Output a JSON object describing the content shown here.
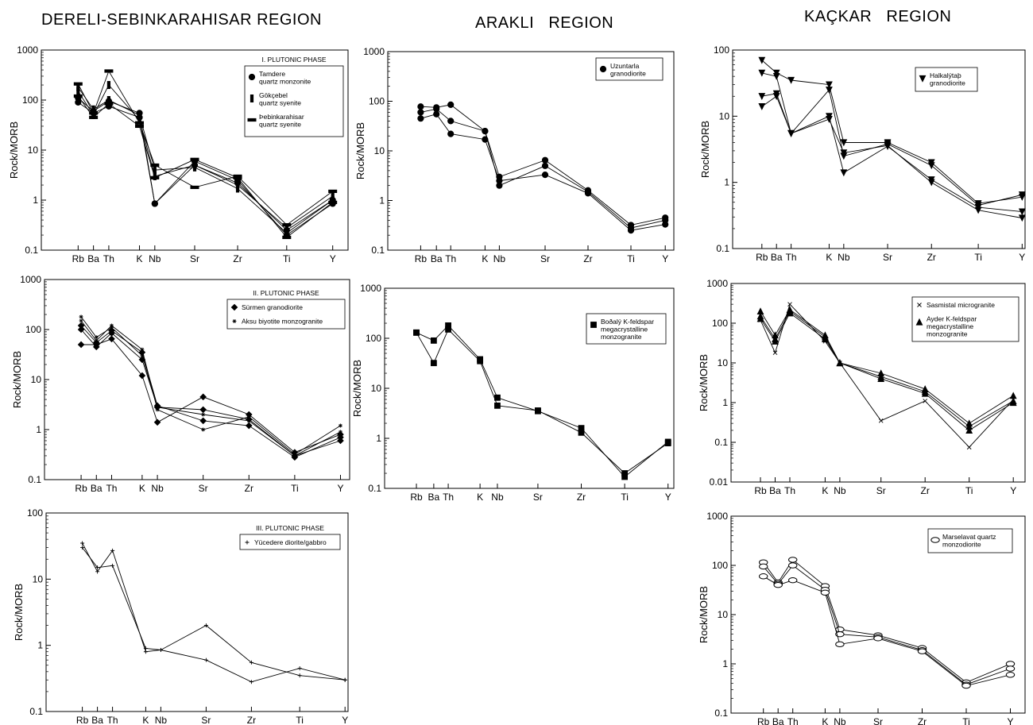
{
  "regions": {
    "left": "DERELI-SEBINKARAHISAR REGION",
    "middle": "ARAKLI   REGION",
    "right": "KAÇKAR   REGION"
  },
  "chart_data": [
    {
      "id": "p1",
      "type": "line",
      "yscale": "log",
      "ylim": [
        0.1,
        1000
      ],
      "yticks": [
        "0.1",
        "1",
        "10",
        "100",
        "1000"
      ],
      "ylabel": "Rock/MORB",
      "xlabel": "",
      "categories": [
        "Rb",
        "Ba",
        "Th",
        "K",
        "Nb",
        "Sr",
        "Zr",
        "Ti",
        "Y"
      ],
      "title": "",
      "legend": {
        "placement": "top-right",
        "heading": "I. PLUTONIC PHASE",
        "entries": [
          {
            "marker": "circle",
            "lines": [
              "Tamdere",
              "quartz monzonite"
            ]
          },
          {
            "marker": "vbar",
            "lines": [
              "Gökçebel",
              "quartz syenite"
            ]
          },
          {
            "marker": "hbar",
            "lines": [
              "Þebinkarahisar",
              "quartz syenite"
            ]
          }
        ]
      },
      "series": [
        {
          "marker": "circle",
          "values": [
            90,
            55,
            75,
            45,
            0.85,
            6,
            2.5,
            0.2,
            0.85
          ]
        },
        {
          "marker": "circle",
          "values": [
            110,
            60,
            95,
            55,
            0.85,
            5,
            2.2,
            0.25,
            1
          ]
        },
        {
          "marker": "vbar",
          "values": [
            150,
            50,
            200,
            40,
            3,
            5,
            2,
            0.28,
            1.2
          ]
        },
        {
          "marker": "vbar",
          "values": [
            180,
            65,
            100,
            50,
            4,
            4.5,
            1.7,
            0.22,
            1
          ]
        },
        {
          "marker": "hbar",
          "values": [
            210,
            55,
            380,
            35,
            5,
            1.8,
            3,
            0.32,
            1.5
          ]
        },
        {
          "marker": "hbar",
          "values": [
            120,
            45,
            85,
            30,
            2.8,
            6.5,
            2.8,
            0.18,
            0.9
          ]
        }
      ]
    },
    {
      "id": "p2",
      "type": "line",
      "yscale": "log",
      "ylim": [
        0.1,
        1000
      ],
      "yticks": [
        "0.1",
        "1",
        "10",
        "100",
        "1000"
      ],
      "ylabel": "Rock/MORB",
      "xlabel": "",
      "categories": [
        "Rb",
        "Ba",
        "Th",
        "K",
        "Nb",
        "Sr",
        "Zr",
        "Ti",
        "Y"
      ],
      "title": "",
      "legend": {
        "placement": "top-right",
        "heading": "",
        "entries": [
          {
            "marker": "circle",
            "lines": [
              "Uzuntarla",
              "granodiorite"
            ]
          }
        ]
      },
      "series": [
        {
          "marker": "circle",
          "values": [
            78,
            75,
            85,
            25,
            3,
            6.5,
            1.6,
            0.32,
            0.45
          ]
        },
        {
          "marker": "circle",
          "values": [
            60,
            70,
            40,
            25,
            2,
            5,
            1.5,
            0.28,
            0.4
          ]
        },
        {
          "marker": "circle",
          "values": [
            45,
            55,
            22,
            17,
            2.5,
            3.3,
            1.4,
            0.25,
            0.33
          ]
        }
      ]
    },
    {
      "id": "p3",
      "type": "line",
      "yscale": "log",
      "ylim": [
        0.1,
        100
      ],
      "yticks": [
        "0.1",
        "1",
        "10",
        "100"
      ],
      "ylabel": "Rock/MORB",
      "xlabel": "",
      "categories": [
        "Rb",
        "Ba",
        "Th",
        "K",
        "Nb",
        "Sr",
        "Zr",
        "Ti",
        "Y"
      ],
      "title": "",
      "legend": {
        "placement": "top-right",
        "heading": "",
        "entries": [
          {
            "marker": "tri-down",
            "lines": [
              "Halkalýtaþ",
              "granodiorite"
            ]
          }
        ]
      },
      "series": [
        {
          "marker": "tri-down",
          "values": [
            70,
            45,
            35,
            30,
            4,
            4,
            2,
            0.48,
            0.6
          ]
        },
        {
          "marker": "tri-down",
          "values": [
            45,
            40,
            5.5,
            25,
            2.5,
            3.8,
            1.8,
            0.45,
            0.65
          ]
        },
        {
          "marker": "tri-down",
          "values": [
            20,
            22,
            5.5,
            10,
            1.4,
            3.5,
            1.1,
            0.42,
            0.36
          ]
        },
        {
          "marker": "tri-down",
          "values": [
            14,
            20,
            5.5,
            9,
            2.8,
            3.6,
            1.0,
            0.38,
            0.29
          ]
        }
      ]
    },
    {
      "id": "p4",
      "type": "line",
      "yscale": "log",
      "ylim": [
        0.1,
        1000
      ],
      "yticks": [
        "0.1",
        "1",
        "10",
        "100",
        "1000"
      ],
      "ylabel": "Rock/MORB",
      "xlabel": "",
      "categories": [
        "Rb",
        "Ba",
        "Th",
        "K",
        "Nb",
        "Sr",
        "Zr",
        "Ti",
        "Y"
      ],
      "title": "",
      "legend": {
        "placement": "top-right",
        "heading": "II. PLUTONIC PHASE",
        "entries": [
          {
            "marker": "diamond",
            "lines": [
              "Sürmen  granodiorite"
            ]
          },
          {
            "marker": "star",
            "lines": [
              "Aksu biyotite monzogranite"
            ]
          }
        ]
      },
      "series": [
        {
          "marker": "diamond",
          "values": [
            50,
            50,
            65,
            12,
            1.4,
            4.5,
            2,
            0.35,
            0.8
          ]
        },
        {
          "marker": "diamond",
          "values": [
            100,
            45,
            85,
            25,
            2.8,
            2.5,
            1.6,
            0.3,
            0.6
          ]
        },
        {
          "marker": "diamond",
          "values": [
            120,
            55,
            95,
            35,
            3,
            1.5,
            1.2,
            0.28,
            0.7
          ]
        },
        {
          "marker": "star",
          "values": [
            150,
            60,
            120,
            40,
            2.5,
            1,
            1.8,
            0.32,
            1.2
          ]
        },
        {
          "marker": "star",
          "values": [
            180,
            70,
            110,
            30,
            2.8,
            2,
            1.5,
            0.3,
            0.9
          ]
        }
      ]
    },
    {
      "id": "p5",
      "type": "line",
      "yscale": "log",
      "ylim": [
        0.1,
        1000
      ],
      "yticks": [
        "0.1",
        "1",
        "10",
        "100",
        "1000"
      ],
      "ylabel": "Rock/MORB",
      "xlabel": "",
      "categories": [
        "Rb",
        "Ba",
        "Th",
        "K",
        "Nb",
        "Sr",
        "Zr",
        "Ti",
        "Y"
      ],
      "title": "",
      "legend": {
        "placement": "top-right",
        "heading": "",
        "entries": [
          {
            "marker": "square",
            "lines": [
              "Boðalý K-feldspar",
              "megacrystalline",
              "monzogranite"
            ]
          }
        ]
      },
      "series": [
        {
          "marker": "square",
          "values": [
            130,
            90,
            180,
            38,
            6.5,
            3.5,
            1.6,
            0.17,
            0.85
          ]
        },
        {
          "marker": "square",
          "values": [
            130,
            32,
            150,
            35,
            4.5,
            3.6,
            1.3,
            0.2,
            0.8
          ]
        }
      ]
    },
    {
      "id": "p6",
      "type": "line",
      "yscale": "log",
      "ylim": [
        0.01,
        1000
      ],
      "yticks": [
        "0.01",
        "0.1",
        "1",
        "10",
        "100",
        "1000"
      ],
      "ylabel": "Rock/MORB",
      "xlabel": "",
      "categories": [
        "Rb",
        "Ba",
        "Th",
        "K",
        "Nb",
        "Sr",
        "Zr",
        "Ti",
        "Y"
      ],
      "title": "",
      "legend": {
        "placement": "top-right",
        "heading": "",
        "entries": [
          {
            "marker": "x",
            "lines": [
              "Sasmistal microgranite"
            ]
          },
          {
            "marker": "triangle",
            "lines": [
              "Ayder K-feldspar",
              "megacrystalline",
              "monzogranite"
            ]
          }
        ]
      },
      "series": [
        {
          "marker": "x",
          "values": [
            120,
            18,
            300,
            35,
            10,
            0.35,
            1.1,
            0.075,
            1.2
          ]
        },
        {
          "marker": "triangle",
          "values": [
            200,
            50,
            220,
            50,
            10,
            5.5,
            2.2,
            0.3,
            1.5
          ]
        },
        {
          "marker": "triangle",
          "values": [
            150,
            40,
            200,
            45,
            10,
            4.5,
            1.9,
            0.25,
            1.1
          ]
        },
        {
          "marker": "triangle",
          "values": [
            130,
            35,
            180,
            40,
            10,
            4,
            1.7,
            0.2,
            1
          ]
        }
      ]
    },
    {
      "id": "p7",
      "type": "line",
      "yscale": "log",
      "ylim": [
        0.1,
        100
      ],
      "yticks": [
        "0.1",
        "1",
        "10",
        "100"
      ],
      "ylabel": "Rock/MORB",
      "xlabel": "",
      "categories": [
        "Rb",
        "Ba",
        "Th",
        "K",
        "Nb",
        "Sr",
        "Zr",
        "Ti",
        "Y"
      ],
      "title": "",
      "legend": {
        "placement": "top-right",
        "heading": "III. PLUTONIC PHASE",
        "entries": [
          {
            "marker": "plus",
            "lines": [
              "Yücedere diorite/gabbro"
            ]
          }
        ]
      },
      "series": [
        {
          "marker": "plus",
          "values": [
            35,
            13,
            27,
            0.8,
            0.85,
            2,
            0.55,
            0.35,
            0.3
          ]
        },
        {
          "marker": "plus",
          "values": [
            30,
            15,
            16,
            0.9,
            0.85,
            0.6,
            0.28,
            0.45,
            0.3
          ]
        }
      ]
    },
    {
      "id": "p8",
      "type": "line",
      "yscale": "log",
      "ylim": [
        0.1,
        1000
      ],
      "yticks": [
        "0.1",
        "1",
        "10",
        "100",
        "1000"
      ],
      "ylabel": "Rock/MORB",
      "xlabel": "",
      "categories": [
        "Rb",
        "Ba",
        "Th",
        "K",
        "Nb",
        "Sr",
        "Zr",
        "Ti",
        "Y"
      ],
      "title": "",
      "legend": {
        "placement": "top-right",
        "heading": "",
        "entries": [
          {
            "marker": "ellipse",
            "lines": [
              "Marselavat quartz",
              "monzodiorite"
            ]
          }
        ]
      },
      "series": [
        {
          "marker": "ellipse",
          "values": [
            115,
            45,
            130,
            38,
            5,
            3.8,
            2.1,
            0.42,
            1.0
          ]
        },
        {
          "marker": "ellipse",
          "values": [
            95,
            42,
            100,
            32,
            4,
            3.5,
            1.9,
            0.38,
            0.8
          ]
        },
        {
          "marker": "ellipse",
          "values": [
            60,
            40,
            50,
            28,
            2.5,
            3.3,
            1.8,
            0.36,
            0.6
          ]
        }
      ]
    }
  ]
}
